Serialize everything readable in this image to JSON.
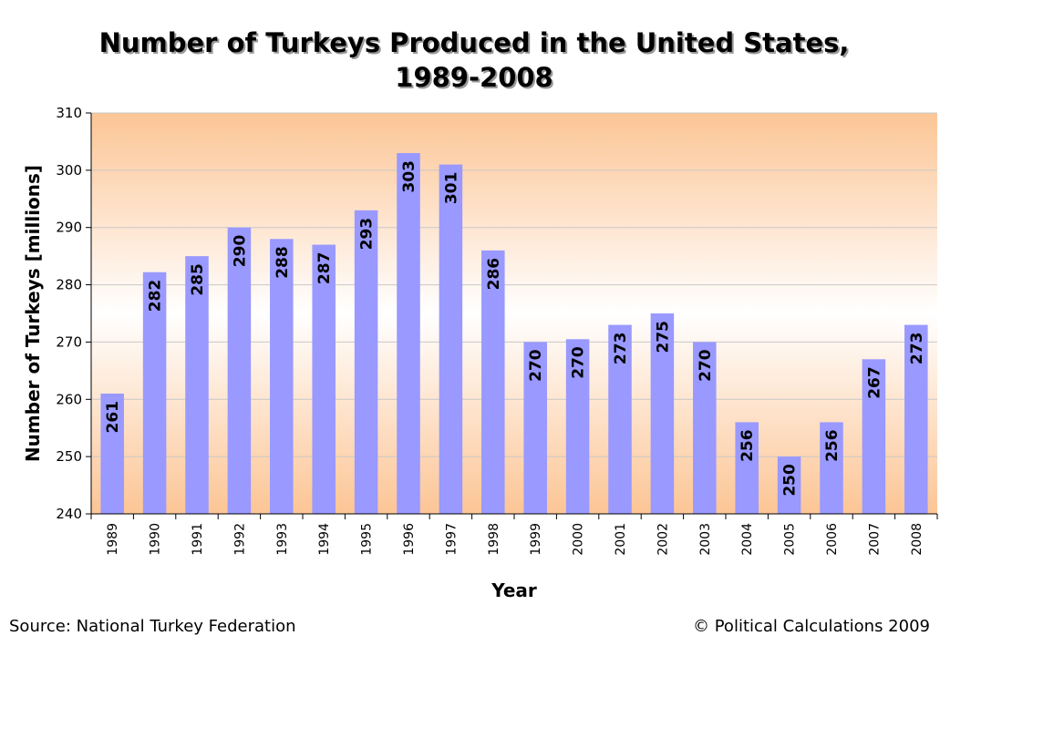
{
  "chart_data": {
    "type": "bar",
    "title": "Number of Turkeys Produced in the United States,",
    "title_line2": "1989-2008",
    "xlabel": "Year",
    "ylabel": "Number of Turkeys [millions]",
    "ylim": [
      240,
      310
    ],
    "yticks": [
      240,
      250,
      260,
      270,
      280,
      290,
      300,
      310
    ],
    "grid": true,
    "categories": [
      "1989",
      "1990",
      "1991",
      "1992",
      "1993",
      "1994",
      "1995",
      "1996",
      "1997",
      "1998",
      "1999",
      "2000",
      "2001",
      "2002",
      "2003",
      "2004",
      "2005",
      "2006",
      "2007",
      "2008"
    ],
    "values": [
      261,
      282.2,
      285,
      290,
      288,
      287,
      293,
      303,
      301,
      286,
      270,
      270.5,
      273,
      275,
      270,
      256,
      250,
      256,
      267,
      273
    ],
    "data_labels": [
      "261",
      "282",
      "285",
      "290",
      "288",
      "287",
      "293",
      "303",
      "301",
      "286",
      "270",
      "270",
      "273",
      "275",
      "270",
      "256",
      "250",
      "256",
      "267",
      "273"
    ],
    "bar_color": "#9999ff",
    "plot_gradient": [
      "#fcc595",
      "#ffffff",
      "#fcc595"
    ]
  },
  "footer": {
    "source": "Source: National Turkey Federation",
    "copyright": "© Political Calculations 2009"
  }
}
